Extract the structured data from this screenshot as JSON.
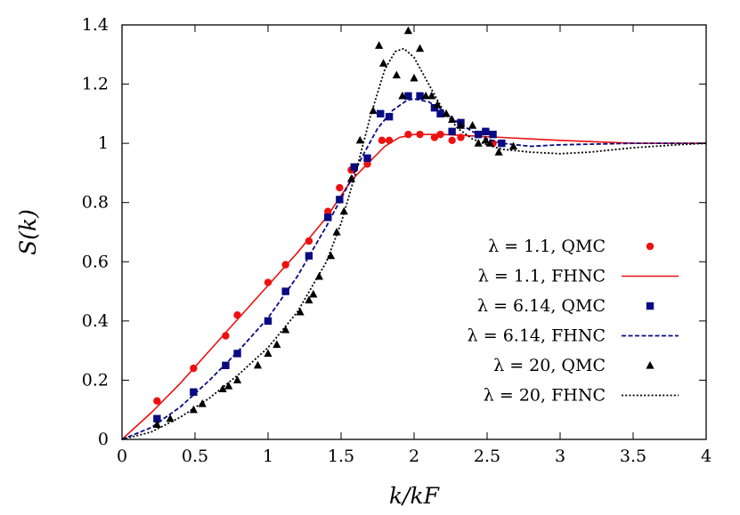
{
  "chart_data": {
    "type": "scatter",
    "xlabel": "k/kF",
    "ylabel": "S(k)",
    "xlim": [
      0,
      4
    ],
    "ylim": [
      0,
      1.4
    ],
    "x_ticks": [
      "0",
      "0.5",
      "1",
      "1.5",
      "2",
      "2.5",
      "3",
      "3.5",
      "4"
    ],
    "y_ticks": [
      "0",
      "0.2",
      "0.4",
      "0.6",
      "0.8",
      "1",
      "1.2",
      "1.4"
    ],
    "legend_position": "right",
    "series": [
      {
        "name": "λ = 1.1, QMC",
        "style": "circle",
        "color": "#ee1111",
        "points": [
          [
            0.24,
            0.13
          ],
          [
            0.49,
            0.24
          ],
          [
            0.71,
            0.35
          ],
          [
            0.79,
            0.42
          ],
          [
            1.0,
            0.53
          ],
          [
            1.12,
            0.59
          ],
          [
            1.28,
            0.67
          ],
          [
            1.41,
            0.77
          ],
          [
            1.49,
            0.85
          ],
          [
            1.57,
            0.91
          ],
          [
            1.68,
            0.93
          ],
          [
            1.78,
            1.01
          ],
          [
            1.83,
            1.01
          ],
          [
            1.96,
            1.03
          ],
          [
            2.04,
            1.03
          ],
          [
            2.14,
            1.02
          ],
          [
            2.18,
            1.03
          ],
          [
            2.26,
            1.01
          ],
          [
            2.32,
            1.02
          ],
          [
            2.54,
            1.0
          ]
        ]
      },
      {
        "name": "λ = 1.1, FHNC",
        "style": "solid",
        "color": "#ee1111",
        "points": [
          [
            0,
            0
          ],
          [
            0.2,
            0.09
          ],
          [
            0.4,
            0.19
          ],
          [
            0.6,
            0.3
          ],
          [
            0.8,
            0.41
          ],
          [
            1.0,
            0.52
          ],
          [
            1.2,
            0.63
          ],
          [
            1.4,
            0.75
          ],
          [
            1.55,
            0.86
          ],
          [
            1.6,
            0.89
          ],
          [
            1.7,
            0.94
          ],
          [
            1.8,
            0.99
          ],
          [
            1.9,
            1.02
          ],
          [
            2.0,
            1.03
          ],
          [
            2.2,
            1.03
          ],
          [
            2.4,
            1.025
          ],
          [
            2.6,
            1.02
          ],
          [
            2.8,
            1.015
          ],
          [
            3.0,
            1.01
          ],
          [
            3.5,
            1.0
          ],
          [
            4.0,
            1.0
          ]
        ]
      },
      {
        "name": "λ = 6.14, QMC",
        "style": "square",
        "color": "#0a0a82",
        "points": [
          [
            0.24,
            0.07
          ],
          [
            0.49,
            0.16
          ],
          [
            0.71,
            0.25
          ],
          [
            0.79,
            0.29
          ],
          [
            1.0,
            0.4
          ],
          [
            1.12,
            0.5
          ],
          [
            1.28,
            0.62
          ],
          [
            1.41,
            0.75
          ],
          [
            1.49,
            0.81
          ],
          [
            1.59,
            0.92
          ],
          [
            1.68,
            0.95
          ],
          [
            1.77,
            1.1
          ],
          [
            1.83,
            1.09
          ],
          [
            1.96,
            1.16
          ],
          [
            2.04,
            1.16
          ],
          [
            2.14,
            1.12
          ],
          [
            2.18,
            1.1
          ],
          [
            2.26,
            1.04
          ],
          [
            2.32,
            1.07
          ],
          [
            2.44,
            1.03
          ],
          [
            2.49,
            1.04
          ],
          [
            2.54,
            1.03
          ],
          [
            2.6,
            1.0
          ]
        ]
      },
      {
        "name": "λ = 6.14, FHNC",
        "style": "dashed",
        "color": "#0a0a82",
        "points": [
          [
            0,
            0
          ],
          [
            0.2,
            0.04
          ],
          [
            0.4,
            0.11
          ],
          [
            0.6,
            0.2
          ],
          [
            0.8,
            0.3
          ],
          [
            1.0,
            0.41
          ],
          [
            1.2,
            0.55
          ],
          [
            1.4,
            0.72
          ],
          [
            1.55,
            0.86
          ],
          [
            1.65,
            0.96
          ],
          [
            1.75,
            1.05
          ],
          [
            1.85,
            1.11
          ],
          [
            1.95,
            1.145
          ],
          [
            2.0,
            1.15
          ],
          [
            2.1,
            1.14
          ],
          [
            2.2,
            1.11
          ],
          [
            2.3,
            1.07
          ],
          [
            2.4,
            1.04
          ],
          [
            2.5,
            1.015
          ],
          [
            2.6,
            1.0
          ],
          [
            2.8,
            0.99
          ],
          [
            3.0,
            0.995
          ],
          [
            3.5,
            1.0
          ],
          [
            4.0,
            1.0
          ]
        ]
      },
      {
        "name": "λ = 20, QMC",
        "style": "triangle",
        "color": "#000000",
        "points": [
          [
            0.24,
            0.05
          ],
          [
            0.33,
            0.07
          ],
          [
            0.49,
            0.1
          ],
          [
            0.55,
            0.12
          ],
          [
            0.69,
            0.17
          ],
          [
            0.73,
            0.18
          ],
          [
            0.79,
            0.2
          ],
          [
            0.93,
            0.25
          ],
          [
            1.0,
            0.29
          ],
          [
            1.06,
            0.32
          ],
          [
            1.12,
            0.37
          ],
          [
            1.22,
            0.43
          ],
          [
            1.28,
            0.47
          ],
          [
            1.31,
            0.49
          ],
          [
            1.35,
            0.55
          ],
          [
            1.43,
            0.62
          ],
          [
            1.47,
            0.7
          ],
          [
            1.52,
            0.77
          ],
          [
            1.57,
            0.88
          ],
          [
            1.63,
            1.01
          ],
          [
            1.72,
            1.11
          ],
          [
            1.76,
            1.33
          ],
          [
            1.79,
            1.27
          ],
          [
            1.88,
            1.23
          ],
          [
            1.92,
            1.16
          ],
          [
            1.96,
            1.38
          ],
          [
            2.0,
            1.22
          ],
          [
            2.04,
            1.32
          ],
          [
            2.08,
            1.16
          ],
          [
            2.12,
            1.16
          ],
          [
            2.16,
            1.13
          ],
          [
            2.22,
            1.1
          ],
          [
            2.26,
            1.08
          ],
          [
            2.32,
            1.06
          ],
          [
            2.4,
            1.06
          ],
          [
            2.44,
            1.0
          ],
          [
            2.49,
            1.01
          ],
          [
            2.52,
            1.0
          ],
          [
            2.58,
            0.97
          ],
          [
            2.68,
            0.99
          ]
        ]
      },
      {
        "name": "λ = 20, FHNC",
        "style": "dotted",
        "color": "#000000",
        "points": [
          [
            0,
            0
          ],
          [
            0.2,
            0.025
          ],
          [
            0.4,
            0.075
          ],
          [
            0.6,
            0.14
          ],
          [
            0.8,
            0.22
          ],
          [
            1.0,
            0.31
          ],
          [
            1.2,
            0.43
          ],
          [
            1.4,
            0.6
          ],
          [
            1.5,
            0.73
          ],
          [
            1.6,
            0.9
          ],
          [
            1.7,
            1.09
          ],
          [
            1.8,
            1.25
          ],
          [
            1.87,
            1.31
          ],
          [
            1.93,
            1.32
          ],
          [
            2.0,
            1.29
          ],
          [
            2.1,
            1.2
          ],
          [
            2.2,
            1.11
          ],
          [
            2.3,
            1.05
          ],
          [
            2.4,
            1.015
          ],
          [
            2.5,
            0.995
          ],
          [
            2.6,
            0.98
          ],
          [
            2.8,
            0.97
          ],
          [
            3.0,
            0.965
          ],
          [
            3.2,
            0.97
          ],
          [
            3.5,
            0.985
          ],
          [
            3.8,
            0.995
          ],
          [
            4.0,
            1.0
          ]
        ]
      }
    ]
  }
}
